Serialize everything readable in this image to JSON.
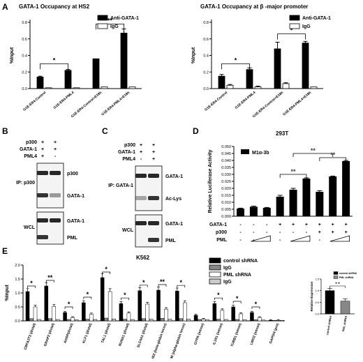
{
  "panels": {
    "A": "A",
    "B": "B",
    "C": "C",
    "D": "D",
    "E": "E"
  },
  "chart_data": [
    {
      "id": "A1",
      "type": "bar",
      "title": "GATA-1 Occupancy at HS2",
      "ylabel": "%Input",
      "ylim": [
        0,
        0.8
      ],
      "yticks": [
        "0.0",
        "0.2",
        "0.4",
        "0.6",
        "0.8"
      ],
      "categories": [
        "G1E-ER4-Control",
        "G1E-ER4-PML4",
        "G1E-ER4-Control+E18h",
        "G1E-ER4-PML4+E18h"
      ],
      "series": [
        {
          "name": "Anti-GATA-1",
          "color": "#000000",
          "values": [
            0.14,
            0.22,
            0.36,
            0.67
          ],
          "err": [
            0.01,
            0.01,
            0.0,
            0.05
          ]
        },
        {
          "name": "IgG",
          "color": "#ffffff",
          "values": [
            0.01,
            0.01,
            0.02,
            0.02
          ],
          "err": [
            0.0,
            0.0,
            0.0,
            0.0
          ]
        }
      ],
      "sig": [
        {
          "a": 0,
          "b": 1,
          "y": 0.3,
          "label": "*"
        },
        {
          "a": 2,
          "b": 3,
          "y": 0.78,
          "label": "**"
        }
      ]
    },
    {
      "id": "A2",
      "type": "bar",
      "title": "GATA-1 Occupancy at β -major promoter",
      "ylabel": "%Input",
      "ylim": [
        0,
        0.8
      ],
      "yticks": [
        "0.0",
        "0.2",
        "0.4",
        "0.6",
        "0.8"
      ],
      "categories": [
        "G1E-ER4-Control",
        "G1E-ER4-PML4",
        "G1E-ER4-Control+E18h",
        "G1E-ER4-PML4+E18h"
      ],
      "series": [
        {
          "name": "Anti-GATA-1",
          "color": "#000000",
          "values": [
            0.15,
            0.23,
            0.48,
            0.55
          ],
          "err": [
            0.02,
            0.02,
            0.08,
            0.02
          ]
        },
        {
          "name": "IgG",
          "color": "#ffffff",
          "values": [
            0.04,
            0.02,
            0.06,
            0.02
          ],
          "err": [
            0.01,
            0.01,
            0.01,
            0.0
          ]
        }
      ],
      "sig": [
        {
          "a": 0,
          "b": 1,
          "y": 0.3,
          "label": "*"
        },
        {
          "a": 2,
          "b": 3,
          "y": 0.66,
          "label": "*"
        }
      ]
    },
    {
      "id": "D",
      "type": "bar",
      "title": "293T",
      "ylabel": "Relative Luciferase Activity",
      "ylim": [
        0,
        0.05
      ],
      "yticks": [
        "0.000",
        "0.005",
        "0.010",
        "0.015",
        "0.020",
        "0.025",
        "0.030",
        "0.035",
        "0.040",
        "0.045",
        "0.050"
      ],
      "legend": "M1α-3b",
      "values": [
        0.0055,
        0.0068,
        0.006,
        0.014,
        0.019,
        0.027,
        0.0175,
        0.0285,
        0.0395
      ],
      "err": [
        0.0003,
        0.0004,
        0.0003,
        0.001,
        0.001,
        0.0005,
        0.0008,
        0.0003,
        0.0005
      ],
      "rows": [
        {
          "label": "GATA-1",
          "marks": [
            "-",
            "-",
            "-",
            "+",
            "+",
            "+",
            "+",
            "+",
            "+"
          ]
        },
        {
          "label": "p300",
          "marks": [
            "-",
            "-",
            "-",
            "-",
            "-",
            "-",
            "+",
            "+",
            "+"
          ]
        },
        {
          "label": "PML",
          "marks": [
            "-",
            "-",
            "",
            "-",
            "",
            "",
            "-",
            "",
            ""
          ]
        }
      ],
      "sig": [
        {
          "a": 3,
          "b": 5,
          "y": 0.03,
          "label": "**"
        },
        {
          "a": 4,
          "b": 7,
          "y": 0.045,
          "label": "**"
        },
        {
          "a": 6,
          "b": 8,
          "y": 0.042,
          "label": "**"
        }
      ]
    },
    {
      "id": "E",
      "type": "bar",
      "title": "K562",
      "ylabel": "%Input",
      "ylim": [
        0,
        2.0
      ],
      "yticks": [
        "0.0",
        "0.5",
        "1.0",
        "1.5",
        "2.0"
      ],
      "categories": [
        "CBFA2T3 (distal)",
        "GRAP2 (distal)",
        "AHSP(distal)",
        "KLF1 (distal)",
        "TAL1 (distal)",
        "RUNX1 (distal)",
        "SLC4A1 (distal)",
        "HS2 (beta-globin locus)",
        "HS40 (alpha-globin locus)",
        "GYPA (intron)",
        "IL1R1 (intron)",
        "TUBB1 (intron)",
        "LMO2 (intron)",
        "GAPDH (pro)"
      ],
      "series": [
        {
          "name": "control shRNA",
          "color": "#000000",
          "values": [
            1.05,
            1.25,
            0.3,
            0.65,
            1.55,
            0.62,
            1.08,
            1.1,
            1.07,
            0.2,
            0.62,
            0.5,
            0.3,
            0.02
          ]
        },
        {
          "name": "IgG",
          "color": "#888888",
          "values": [
            0.08,
            0.08,
            0.05,
            0.06,
            0.1,
            0.06,
            0.08,
            0.09,
            0.08,
            0.05,
            0.06,
            0.05,
            0.04,
            0.02
          ]
        },
        {
          "name": "PML shRNA",
          "color": "#ffffff",
          "values": [
            0.5,
            0.52,
            0.12,
            0.24,
            1.05,
            0.28,
            0.6,
            0.42,
            0.65,
            0.06,
            0.38,
            0.25,
            0.12,
            0.02
          ]
        },
        {
          "name": "IgG",
          "color": "#cccccc",
          "values": [
            0.05,
            0.05,
            0.04,
            0.05,
            0.07,
            0.05,
            0.06,
            0.06,
            0.06,
            0.04,
            0.05,
            0.04,
            0.03,
            0.02
          ]
        }
      ],
      "sig": [
        "*",
        "**",
        "*",
        "*",
        "*",
        "*",
        "*",
        "**",
        "*",
        "",
        "*",
        "*",
        "*",
        ""
      ]
    },
    {
      "id": "E-inset",
      "type": "bar",
      "ylabel": "Relative Expression",
      "ylim": [
        0,
        1.5
      ],
      "yticks": [
        "0.0",
        "0.5",
        "1.0",
        "1.5"
      ],
      "categories": [
        "control shRNA",
        "PML shRNA"
      ],
      "legend": [
        "control shRNA",
        "PML shRNA"
      ],
      "values": [
        1.0,
        0.55
      ],
      "colors": [
        "#000000",
        "#888888"
      ],
      "sig": "* *"
    }
  ],
  "blots": {
    "B": {
      "rows": [
        {
          "label": "p300",
          "marks": [
            "+",
            "+"
          ]
        },
        {
          "label": "GATA-1",
          "marks": [
            "+",
            "+"
          ]
        },
        {
          "label": "PML4",
          "marks": [
            "+",
            "-"
          ]
        }
      ],
      "ip": "IP: p300",
      "wcl": "WCL",
      "bands": [
        "p300",
        "GATA-1",
        "GATA-1",
        "PML"
      ]
    },
    "C": {
      "rows": [
        {
          "label": "p300",
          "marks": [
            "+",
            "+"
          ]
        },
        {
          "label": "GATA-1",
          "marks": [
            "+",
            "+"
          ]
        },
        {
          "label": "PML4",
          "marks": [
            "-",
            "+"
          ]
        }
      ],
      "ip": "IP: GATA-1",
      "wcl": "WCL",
      "bands": [
        "GATA-1",
        "Ac-Lys",
        "GATA-1",
        "PML"
      ]
    }
  }
}
